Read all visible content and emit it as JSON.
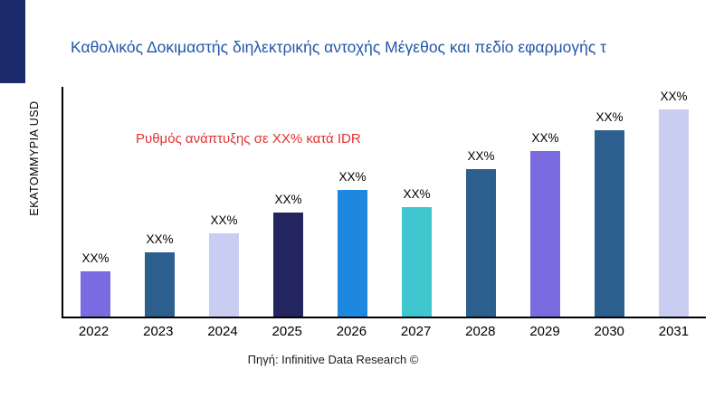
{
  "chart_data": {
    "type": "bar",
    "title": "Καθολικός Δοκιμαστής διηλεκτρικής αντοχής Μέγεθος και πεδίο εφαρμογής τ",
    "ylabel": "ΕΚΑΤΟΜΜΥΡΙΑ USD",
    "xlabel": "",
    "annotation": "Ρυθμός ανάπτυξης σε XX% κατά IDR",
    "source": "Πηγή: Infinitive Data Research ©",
    "categories": [
      "2022",
      "2023",
      "2024",
      "2025",
      "2026",
      "2027",
      "2028",
      "2029",
      "2030",
      "2031"
    ],
    "values": [
      22,
      31,
      40,
      50,
      61,
      53,
      71,
      80,
      90,
      100
    ],
    "bar_labels": [
      "XX%",
      "XX%",
      "XX%",
      "XX%",
      "XX%",
      "XX%",
      "XX%",
      "XX%",
      "XX%",
      "XX%"
    ],
    "bar_colors": [
      "#7A6BE0",
      "#2D5F8E",
      "#C9CDF2",
      "#23255E",
      "#1E87E0",
      "#3FC6CE",
      "#2D5F8E",
      "#7A6BE0",
      "#2D5F8E",
      "#C9CDF2"
    ],
    "ylim": [
      0,
      110
    ],
    "grid": false,
    "legend": null
  },
  "colors": {
    "title": "#2457A8",
    "annotation": "#E03232",
    "axis": "#000000",
    "corner_block": "#1B2A6B"
  }
}
